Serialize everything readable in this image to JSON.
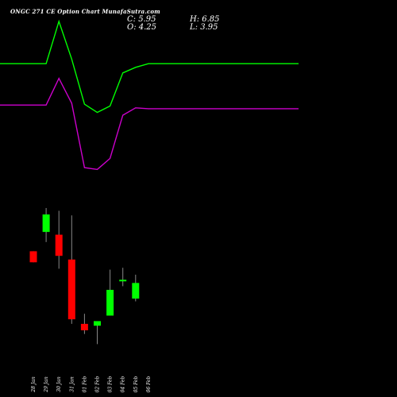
{
  "header": {
    "title": "ONGC 271 CE Option  Chart MunafaSutra.com",
    "close_label": "C: 5.95",
    "high_label": "H: 6.85",
    "open_label": "O: 4.25",
    "low_label": "L: 3.95"
  },
  "colors": {
    "background": "#000000",
    "up": "#00ff00",
    "down": "#ff0000",
    "upper_band": "#00ff00",
    "lower_band": "#cc00cc"
  },
  "chart_data": {
    "type": "candlestick",
    "categories": [
      "28 Jan",
      "29 Jan",
      "30 Jan",
      "31 Jan",
      "01 Feb",
      "02 Feb",
      "03 Feb",
      "04 Feb",
      "05 Feb",
      "06 Feb"
    ],
    "x_tick_labels": [
      "28 Jan",
      "29 Jan",
      "30 Jan",
      "31 Jan",
      "01 Feb",
      "02 Feb",
      "03 Feb",
      "04 Feb",
      "05 Feb",
      "06 Feb"
    ],
    "candles": [
      {
        "date": "28 Jan",
        "open": 9.4,
        "high": 9.4,
        "low": 8.2,
        "close": 8.2
      },
      {
        "date": "29 Jan",
        "open": 11.5,
        "high": 14.1,
        "low": 10.4,
        "close": 13.4
      },
      {
        "date": "30 Jan",
        "open": 11.2,
        "high": 13.8,
        "low": 7.5,
        "close": 8.9
      },
      {
        "date": "31 Jan",
        "open": 8.5,
        "high": 13.3,
        "low": 1.5,
        "close": 2.0
      },
      {
        "date": "01 Feb",
        "open": 1.5,
        "high": 2.6,
        "low": 0.4,
        "close": 0.8
      },
      {
        "date": "02 Feb",
        "open": 1.3,
        "high": 1.5,
        "low": -0.7,
        "close": 1.8
      },
      {
        "date": "03 Feb",
        "open": 2.4,
        "high": 7.4,
        "low": 2.4,
        "close": 5.2
      },
      {
        "date": "04 Feb",
        "open": 6.2,
        "high": 7.6,
        "low": 5.6,
        "close": 6.3
      },
      {
        "date": "05 Feb",
        "open": 4.25,
        "high": 6.85,
        "low": 3.95,
        "close": 5.95
      }
    ],
    "upper_band": [
      null,
      29.8,
      34.4,
      30.3,
      25.4,
      24.5,
      25.2,
      28.8,
      29.4,
      29.8
    ],
    "lower_band": [
      null,
      25.3,
      28.2,
      25.5,
      18.5,
      18.3,
      19.5,
      24.2,
      25.0,
      24.9
    ],
    "ylim": [
      -3,
      35
    ]
  }
}
